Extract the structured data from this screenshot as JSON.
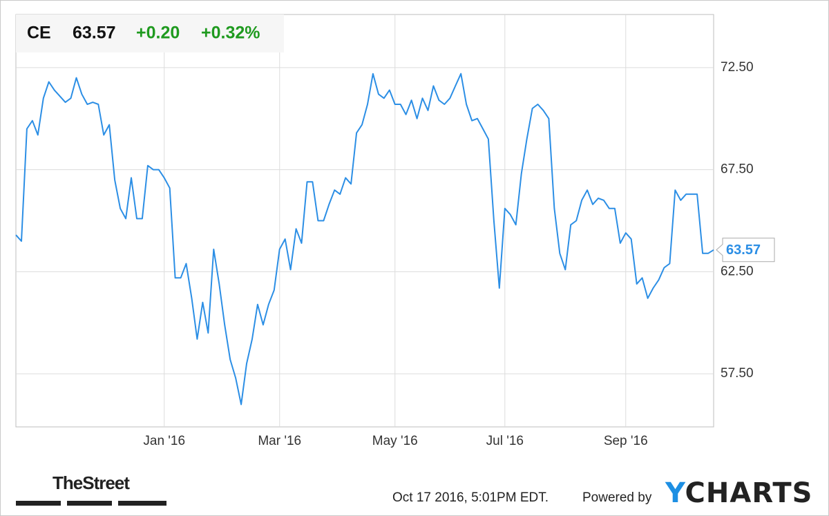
{
  "chart_data": {
    "type": "line",
    "ticker": "CE",
    "price": 63.57,
    "change": "+0.20",
    "change_pct": "+0.32%",
    "categories": [
      null,
      null,
      null,
      null,
      null,
      null,
      null,
      null,
      null,
      null,
      null,
      null,
      null,
      null,
      null,
      null,
      null,
      null,
      null,
      null,
      null,
      null,
      null,
      null,
      null,
      null,
      null,
      "Jan '16",
      null,
      null,
      null,
      null,
      null,
      null,
      null,
      null,
      null,
      null,
      null,
      null,
      null,
      null,
      null,
      null,
      null,
      null,
      null,
      null,
      "Mar '16",
      null,
      null,
      null,
      null,
      null,
      null,
      null,
      null,
      null,
      null,
      null,
      null,
      null,
      null,
      null,
      null,
      null,
      null,
      null,
      null,
      "May '16",
      null,
      null,
      null,
      null,
      null,
      null,
      null,
      null,
      null,
      null,
      null,
      null,
      null,
      null,
      null,
      null,
      null,
      null,
      null,
      "Jul '16",
      null,
      null,
      null,
      null,
      null,
      null,
      null,
      null,
      null,
      null,
      null,
      null,
      null,
      null,
      null,
      null,
      null,
      null,
      null,
      null,
      null,
      "Sep '16",
      null,
      null,
      null,
      null,
      null,
      null,
      null,
      null,
      null,
      null,
      null,
      null,
      null,
      null,
      null,
      null
    ],
    "series": [
      {
        "name": "CE",
        "color": "#2b8ee5",
        "values": [
          64.3,
          64.0,
          69.5,
          69.9,
          69.2,
          71.0,
          71.8,
          71.4,
          71.1,
          70.8,
          71.0,
          72.0,
          71.2,
          70.7,
          70.8,
          70.7,
          69.2,
          69.7,
          67.0,
          65.6,
          65.1,
          67.1,
          65.1,
          65.1,
          67.7,
          67.5,
          67.5,
          67.1,
          66.6,
          62.2,
          62.2,
          62.9,
          61.2,
          59.2,
          61.0,
          59.5,
          63.6,
          61.9,
          59.9,
          58.2,
          57.3,
          56.0,
          58.0,
          59.2,
          60.9,
          59.9,
          60.9,
          61.6,
          63.6,
          64.1,
          62.6,
          64.6,
          63.9,
          66.9,
          66.9,
          65.0,
          65.0,
          65.8,
          66.5,
          66.3,
          67.1,
          66.8,
          69.3,
          69.7,
          70.7,
          72.2,
          71.2,
          71.0,
          71.4,
          70.7,
          70.7,
          70.2,
          70.9,
          70.0,
          71.0,
          70.4,
          71.6,
          70.9,
          70.7,
          71.0,
          71.6,
          72.2,
          70.7,
          69.9,
          70.0,
          69.5,
          69.0,
          65.0,
          61.7,
          65.6,
          65.3,
          64.8,
          67.3,
          69.0,
          70.5,
          70.7,
          70.4,
          70.0,
          65.6,
          63.4,
          62.6,
          64.8,
          65.0,
          66.0,
          66.5,
          65.8,
          66.1,
          66.0,
          65.6,
          65.6,
          63.9,
          64.4,
          64.1,
          61.9,
          62.2,
          61.2,
          61.7,
          62.1,
          62.7,
          62.9,
          66.5,
          66.0,
          66.3,
          66.3,
          66.3,
          63.4,
          63.4,
          63.57
        ]
      }
    ],
    "ylim": [
      54.9,
      75.1
    ],
    "yticks": [
      {
        "value": 57.5,
        "label": "57.50"
      },
      {
        "value": 62.5,
        "label": "62.50"
      },
      {
        "value": 67.5,
        "label": "67.50"
      },
      {
        "value": 72.5,
        "label": "72.50"
      }
    ],
    "grid": true
  },
  "footer": {
    "source": "TheStreet",
    "timestamp": "Oct 17 2016, 5:01PM EDT.",
    "powered_by": "Powered by",
    "brand": "YCHARTS"
  }
}
